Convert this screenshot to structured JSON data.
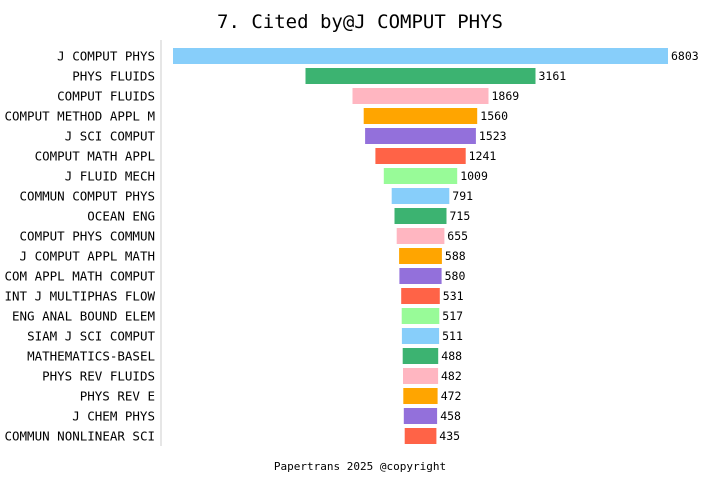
{
  "chart_data": {
    "type": "bar",
    "orientation": "horizontal",
    "style": "funnel",
    "title": "7. Cited by@J COMPUT PHYS",
    "footer": "Papertrans 2025 @copyright",
    "categories": [
      "J COMPUT PHYS",
      "PHYS FLUIDS",
      "COMPUT FLUIDS",
      "COMPUT METHOD APPL M",
      "J SCI COMPUT",
      "COMPUT MATH APPL",
      "J FLUID MECH",
      "COMMUN COMPUT PHYS",
      "OCEAN ENG",
      "COMPUT PHYS COMMUN",
      "J COMPUT APPL MATH",
      "COM APPL MATH COMPUT",
      "INT J MULTIPHAS FLOW",
      "ENG ANAL BOUND ELEM",
      "SIAM J SCI COMPUT",
      "MATHEMATICS-BASEL",
      "PHYS REV FLUIDS",
      "PHYS REV E",
      "J CHEM PHYS",
      "COMMUN NONLINEAR SCI"
    ],
    "values": [
      6803,
      3161,
      1869,
      1560,
      1523,
      1241,
      1009,
      791,
      715,
      655,
      588,
      580,
      531,
      517,
      511,
      488,
      482,
      472,
      458,
      435
    ],
    "colors": [
      "#87CEFA",
      "#3CB371",
      "#FFB6C1",
      "#FFA500",
      "#9370DB",
      "#FF6347",
      "#98FB98"
    ]
  }
}
